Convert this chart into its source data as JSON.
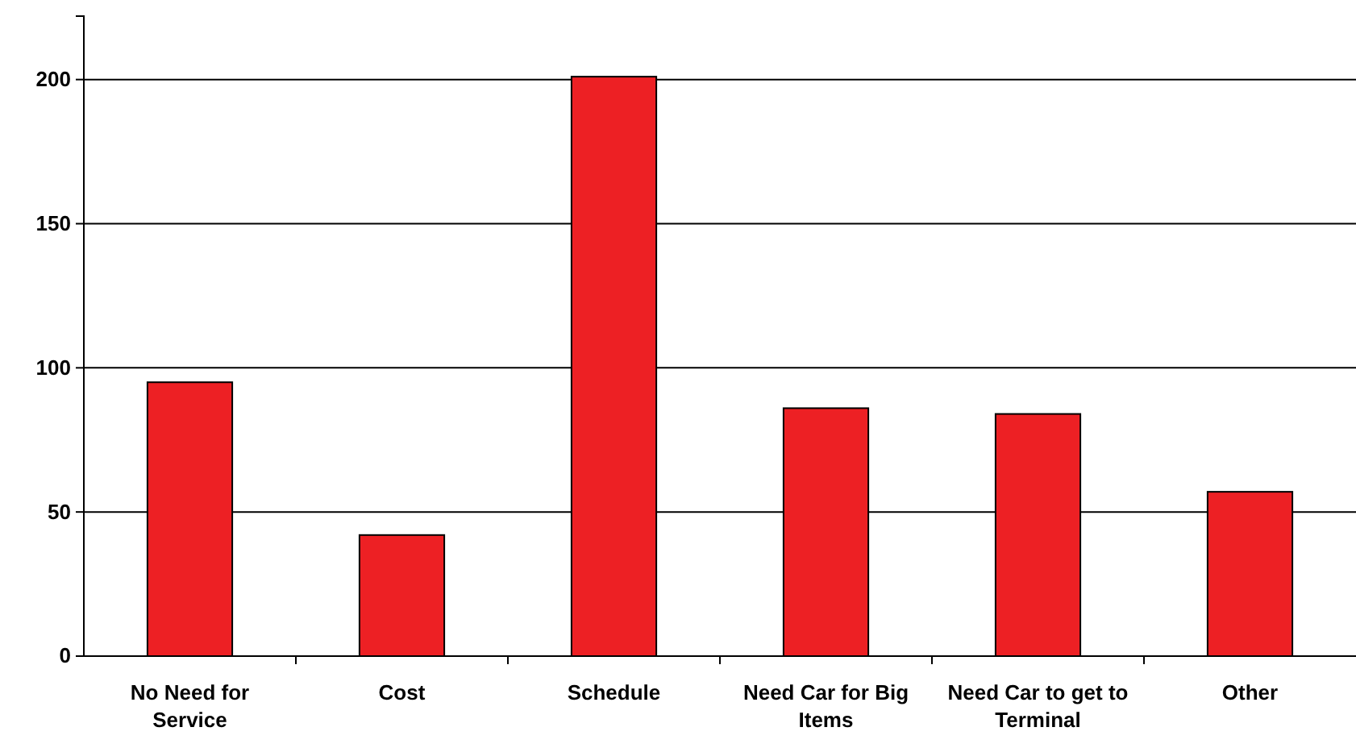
{
  "chart_data": {
    "type": "bar",
    "categories": [
      "No Need for Service",
      "Cost",
      "Schedule",
      "Need Car for Big Items",
      "Need Car to get to Terminal",
      "Other"
    ],
    "values": [
      95,
      42,
      201,
      86,
      84,
      57
    ],
    "color": "#ed2024",
    "ylim": [
      0,
      222
    ],
    "yticks": [
      0,
      50,
      100,
      150,
      200
    ],
    "grid": "y"
  }
}
